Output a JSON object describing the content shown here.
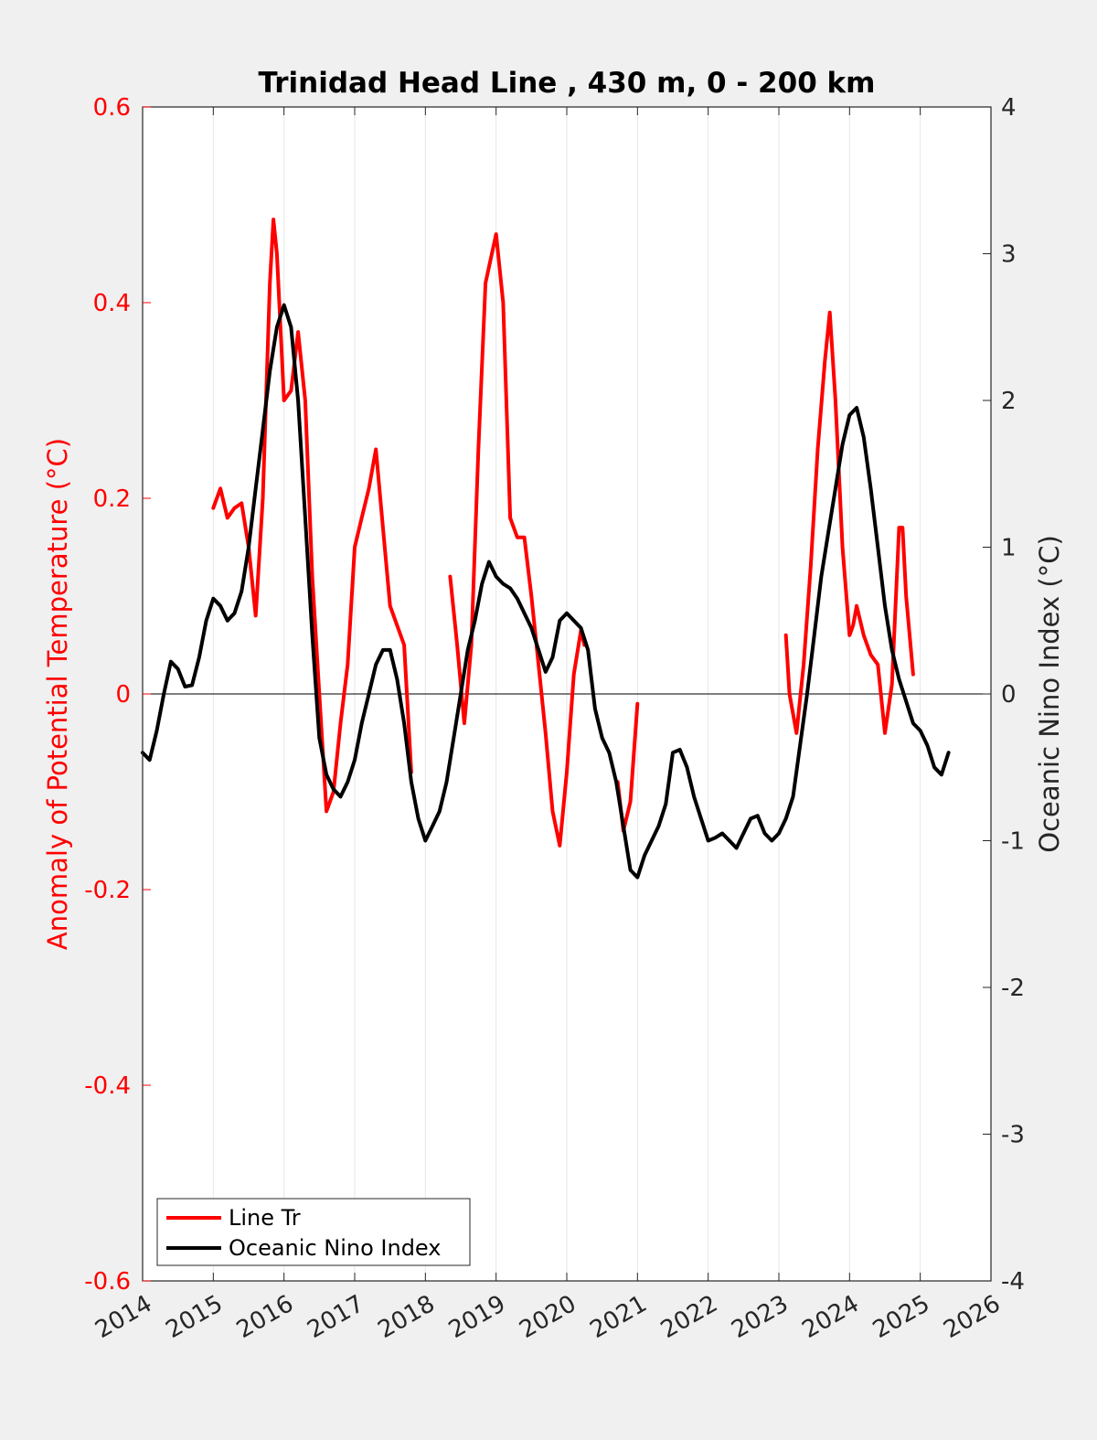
{
  "chart_data": {
    "type": "line",
    "title": "Trinidad Head Line , 430 m, 0 - 200 km",
    "xlabel": "",
    "xlim": [
      2014,
      2026
    ],
    "x_ticks": [
      "2014",
      "2015",
      "2016",
      "2017",
      "2018",
      "2019",
      "2020",
      "2021",
      "2022",
      "2023",
      "2024",
      "2025",
      "2026"
    ],
    "ylabel_left": "Anomaly of Potential Temperature (°C)",
    "ylim_left": [
      -0.6,
      0.6
    ],
    "y_ticks_left": [
      "0.6",
      "0.4",
      "0.2",
      "0",
      "-0.2",
      "-0.4",
      "-0.6"
    ],
    "ylabel_right": "Oceanic Nino Index (°C)",
    "ylim_right": [
      -4,
      4
    ],
    "y_ticks_right": [
      "4",
      "3",
      "2",
      "1",
      "0",
      "-1",
      "-2",
      "-3",
      "-4"
    ],
    "grid": "vertical x-gridlines",
    "legend_position": "bottom-left",
    "colors": {
      "line_tr": "#ff0000",
      "oni": "#000000",
      "left_axis": "#ff0000"
    },
    "series": [
      {
        "name": "Line Tr",
        "axis": "left",
        "segments": [
          [
            [
              2015.0,
              0.19
            ],
            [
              2015.1,
              0.21
            ],
            [
              2015.2,
              0.18
            ],
            [
              2015.3,
              0.19
            ],
            [
              2015.4,
              0.195
            ],
            [
              2015.5,
              0.15
            ],
            [
              2015.6,
              0.08
            ],
            [
              2015.7,
              0.2
            ],
            [
              2015.8,
              0.42
            ],
            [
              2015.85,
              0.485
            ],
            [
              2015.9,
              0.45
            ],
            [
              2016.0,
              0.3
            ],
            [
              2016.1,
              0.31
            ],
            [
              2016.2,
              0.37
            ],
            [
              2016.3,
              0.3
            ],
            [
              2016.4,
              0.12
            ],
            [
              2016.5,
              0.0
            ],
            [
              2016.6,
              -0.12
            ],
            [
              2016.7,
              -0.1
            ],
            [
              2016.8,
              -0.03
            ],
            [
              2016.9,
              0.03
            ],
            [
              2017.0,
              0.15
            ],
            [
              2017.1,
              0.18
            ],
            [
              2017.2,
              0.21
            ],
            [
              2017.3,
              0.25
            ],
            [
              2017.4,
              0.17
            ],
            [
              2017.5,
              0.09
            ],
            [
              2017.6,
              0.07
            ],
            [
              2017.7,
              0.05
            ],
            [
              2017.8,
              -0.08
            ]
          ],
          [
            [
              2018.35,
              0.12
            ],
            [
              2018.45,
              0.05
            ],
            [
              2018.55,
              -0.03
            ],
            [
              2018.65,
              0.05
            ],
            [
              2018.75,
              0.25
            ],
            [
              2018.85,
              0.42
            ],
            [
              2019.0,
              0.47
            ],
            [
              2019.1,
              0.4
            ],
            [
              2019.2,
              0.18
            ],
            [
              2019.3,
              0.16
            ],
            [
              2019.4,
              0.16
            ],
            [
              2019.5,
              0.1
            ],
            [
              2019.6,
              0.03
            ],
            [
              2019.7,
              -0.04
            ],
            [
              2019.8,
              -0.12
            ],
            [
              2019.9,
              -0.155
            ],
            [
              2020.0,
              -0.08
            ],
            [
              2020.1,
              0.02
            ],
            [
              2020.2,
              0.065
            ],
            [
              2020.25,
              0.05
            ]
          ],
          [
            [
              2020.72,
              -0.09
            ],
            [
              2020.8,
              -0.14
            ],
            [
              2020.9,
              -0.11
            ],
            [
              2021.0,
              -0.01
            ]
          ],
          [
            [
              2023.1,
              0.06
            ],
            [
              2023.15,
              0.0
            ],
            [
              2023.25,
              -0.04
            ],
            [
              2023.35,
              0.03
            ],
            [
              2023.45,
              0.13
            ],
            [
              2023.55,
              0.25
            ],
            [
              2023.65,
              0.34
            ],
            [
              2023.72,
              0.39
            ],
            [
              2023.8,
              0.3
            ],
            [
              2023.9,
              0.15
            ],
            [
              2024.0,
              0.06
            ],
            [
              2024.05,
              0.07
            ],
            [
              2024.1,
              0.09
            ],
            [
              2024.2,
              0.06
            ],
            [
              2024.3,
              0.04
            ],
            [
              2024.4,
              0.03
            ],
            [
              2024.5,
              -0.04
            ],
            [
              2024.6,
              0.01
            ],
            [
              2024.7,
              0.17
            ],
            [
              2024.75,
              0.17
            ],
            [
              2024.8,
              0.1
            ],
            [
              2024.9,
              0.02
            ]
          ]
        ]
      },
      {
        "name": "Oceanic Nino Index",
        "axis": "right",
        "segments": [
          [
            [
              2014.0,
              -0.4
            ],
            [
              2014.1,
              -0.45
            ],
            [
              2014.2,
              -0.25
            ],
            [
              2014.3,
              0.0
            ],
            [
              2014.4,
              0.22
            ],
            [
              2014.5,
              0.17
            ],
            [
              2014.6,
              0.05
            ],
            [
              2014.7,
              0.06
            ],
            [
              2014.8,
              0.25
            ],
            [
              2014.9,
              0.5
            ],
            [
              2015.0,
              0.65
            ],
            [
              2015.1,
              0.6
            ],
            [
              2015.2,
              0.5
            ],
            [
              2015.3,
              0.55
            ],
            [
              2015.4,
              0.7
            ],
            [
              2015.5,
              1.0
            ],
            [
              2015.6,
              1.4
            ],
            [
              2015.7,
              1.8
            ],
            [
              2015.8,
              2.2
            ],
            [
              2015.9,
              2.5
            ],
            [
              2016.0,
              2.65
            ],
            [
              2016.1,
              2.5
            ],
            [
              2016.2,
              2.0
            ],
            [
              2016.3,
              1.2
            ],
            [
              2016.4,
              0.4
            ],
            [
              2016.5,
              -0.3
            ],
            [
              2016.6,
              -0.55
            ],
            [
              2016.7,
              -0.65
            ],
            [
              2016.8,
              -0.7
            ],
            [
              2016.9,
              -0.6
            ],
            [
              2017.0,
              -0.45
            ],
            [
              2017.1,
              -0.2
            ],
            [
              2017.2,
              0.0
            ],
            [
              2017.3,
              0.2
            ],
            [
              2017.4,
              0.3
            ],
            [
              2017.5,
              0.3
            ],
            [
              2017.6,
              0.1
            ],
            [
              2017.7,
              -0.2
            ],
            [
              2017.8,
              -0.6
            ],
            [
              2017.9,
              -0.85
            ],
            [
              2018.0,
              -1.0
            ],
            [
              2018.1,
              -0.9
            ],
            [
              2018.2,
              -0.8
            ],
            [
              2018.3,
              -0.6
            ],
            [
              2018.4,
              -0.3
            ],
            [
              2018.5,
              0.0
            ],
            [
              2018.6,
              0.3
            ],
            [
              2018.7,
              0.5
            ],
            [
              2018.8,
              0.75
            ],
            [
              2018.9,
              0.9
            ],
            [
              2019.0,
              0.8
            ],
            [
              2019.1,
              0.75
            ],
            [
              2019.2,
              0.72
            ],
            [
              2019.3,
              0.65
            ],
            [
              2019.4,
              0.55
            ],
            [
              2019.5,
              0.45
            ],
            [
              2019.6,
              0.3
            ],
            [
              2019.7,
              0.15
            ],
            [
              2019.8,
              0.25
            ],
            [
              2019.9,
              0.5
            ],
            [
              2020.0,
              0.55
            ],
            [
              2020.1,
              0.5
            ],
            [
              2020.2,
              0.45
            ],
            [
              2020.3,
              0.3
            ],
            [
              2020.4,
              -0.1
            ],
            [
              2020.5,
              -0.3
            ],
            [
              2020.6,
              -0.4
            ],
            [
              2020.7,
              -0.6
            ],
            [
              2020.8,
              -0.9
            ],
            [
              2020.9,
              -1.2
            ],
            [
              2021.0,
              -1.25
            ],
            [
              2021.1,
              -1.1
            ],
            [
              2021.2,
              -1.0
            ],
            [
              2021.3,
              -0.9
            ],
            [
              2021.4,
              -0.75
            ],
            [
              2021.5,
              -0.4
            ],
            [
              2021.6,
              -0.38
            ],
            [
              2021.7,
              -0.5
            ],
            [
              2021.8,
              -0.7
            ],
            [
              2021.9,
              -0.85
            ],
            [
              2022.0,
              -1.0
            ],
            [
              2022.1,
              -0.98
            ],
            [
              2022.2,
              -0.95
            ],
            [
              2022.3,
              -1.0
            ],
            [
              2022.4,
              -1.05
            ],
            [
              2022.5,
              -0.95
            ],
            [
              2022.6,
              -0.85
            ],
            [
              2022.7,
              -0.83
            ],
            [
              2022.8,
              -0.95
            ],
            [
              2022.9,
              -1.0
            ],
            [
              2023.0,
              -0.95
            ],
            [
              2023.1,
              -0.85
            ],
            [
              2023.2,
              -0.7
            ],
            [
              2023.3,
              -0.35
            ],
            [
              2023.4,
              0.0
            ],
            [
              2023.5,
              0.4
            ],
            [
              2023.6,
              0.8
            ],
            [
              2023.7,
              1.1
            ],
            [
              2023.8,
              1.4
            ],
            [
              2023.9,
              1.7
            ],
            [
              2024.0,
              1.9
            ],
            [
              2024.1,
              1.95
            ],
            [
              2024.2,
              1.75
            ],
            [
              2024.3,
              1.4
            ],
            [
              2024.4,
              1.0
            ],
            [
              2024.5,
              0.6
            ],
            [
              2024.6,
              0.3
            ],
            [
              2024.7,
              0.1
            ],
            [
              2024.8,
              -0.05
            ],
            [
              2024.9,
              -0.2
            ],
            [
              2025.0,
              -0.25
            ],
            [
              2025.1,
              -0.35
            ],
            [
              2025.2,
              -0.5
            ],
            [
              2025.3,
              -0.55
            ],
            [
              2025.4,
              -0.4
            ]
          ]
        ]
      }
    ]
  }
}
